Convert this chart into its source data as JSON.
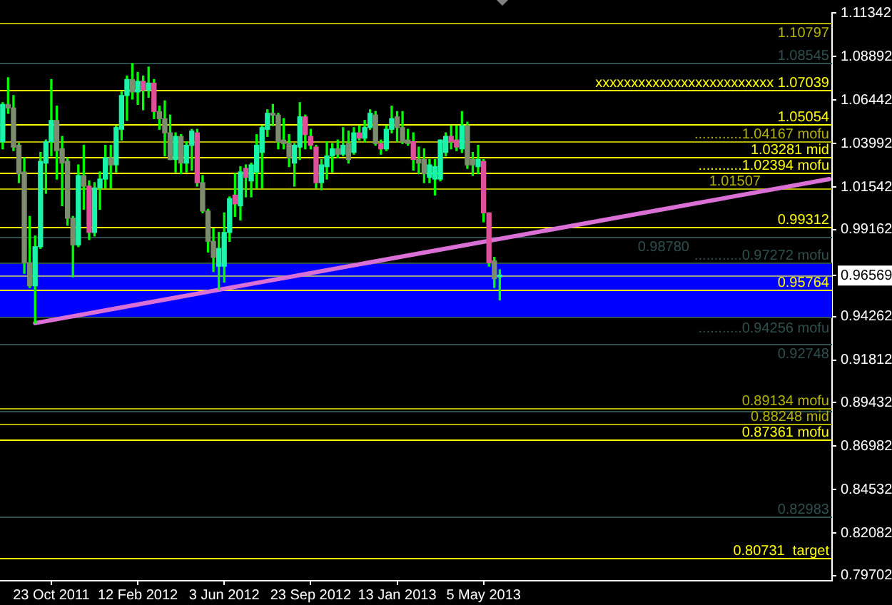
{
  "chart_data": {
    "type": "candlestick",
    "categories": [
      null,
      null,
      null,
      null,
      null,
      null,
      null,
      null,
      null,
      "23 Oct 2011",
      null,
      null,
      null,
      null,
      null,
      null,
      null,
      null,
      null,
      null,
      null,
      null,
      null,
      null,
      null,
      "12 Feb 2012",
      null,
      null,
      null,
      null,
      null,
      null,
      null,
      null,
      null,
      null,
      null,
      null,
      null,
      null,
      null,
      "3 Jun 2012",
      null,
      null,
      null,
      null,
      null,
      null,
      null,
      null,
      null,
      null,
      null,
      null,
      null,
      null,
      null,
      "23 Sep 2012",
      null,
      null,
      null,
      null,
      null,
      null,
      null,
      null,
      null,
      null,
      null,
      null,
      null,
      null,
      null,
      "13 Jan 2013",
      null,
      null,
      null,
      null,
      null,
      null,
      null,
      null,
      null,
      null,
      null,
      null,
      null,
      null,
      null,
      "5 May 2013",
      null,
      null,
      null,
      null,
      null,
      null,
      null,
      null,
      null,
      null,
      null,
      null,
      null,
      null,
      null,
      null,
      null,
      null,
      null,
      null,
      null,
      null,
      null,
      null,
      null,
      null,
      null,
      null,
      null,
      null,
      null,
      null,
      null,
      null,
      null,
      null,
      null,
      null,
      null,
      null,
      null,
      null,
      null,
      null,
      null,
      null,
      null,
      null,
      null,
      null,
      null,
      null,
      null,
      null,
      null,
      null,
      null,
      null,
      null,
      null,
      null,
      null,
      null,
      null
    ],
    "ohlc": [
      [
        1.041,
        1.063,
        1.037,
        1.062
      ],
      [
        1.062,
        1.077,
        1.057,
        1.06
      ],
      [
        1.06,
        1.067,
        1.036,
        1.038
      ],
      [
        1.039,
        1.04,
        1.018,
        1.023
      ],
      [
        1.024,
        1.032,
        0.967,
        0.973
      ],
      [
        0.973,
        0.999,
        0.959,
        0.96
      ],
      [
        0.96,
        0.988,
        0.939,
        0.982
      ],
      [
        0.982,
        1.035,
        0.981,
        1.03
      ],
      [
        1.029,
        1.042,
        1.012,
        1.041
      ],
      [
        1.041,
        1.076,
        1.033,
        1.053
      ],
      [
        1.053,
        1.061,
        1.02,
        1.036
      ],
      [
        1.037,
        1.044,
        1.005,
        1.029
      ],
      [
        1.03,
        1.032,
        0.994,
        0.998
      ],
      [
        0.998,
        0.999,
        0.965,
        0.983
      ],
      [
        0.983,
        1.028,
        0.982,
        1.022
      ],
      [
        1.022,
        1.039,
        1.003,
        1.016
      ],
      [
        1.016,
        1.019,
        0.986,
        0.99
      ],
      [
        0.99,
        1.018,
        0.988,
        1.015
      ],
      [
        1.015,
        1.024,
        1.003,
        1.02
      ],
      [
        1.02,
        1.039,
        1.015,
        1.032
      ],
      [
        1.032,
        1.039,
        1.015,
        1.028
      ],
      [
        1.028,
        1.05,
        1.024,
        1.049
      ],
      [
        1.048,
        1.069,
        1.042,
        1.067
      ],
      [
        1.067,
        1.078,
        1.053,
        1.076
      ],
      [
        1.076,
        1.085,
        1.065,
        1.069
      ],
      [
        1.069,
        1.08,
        1.062,
        1.075
      ],
      [
        1.075,
        1.078,
        1.059,
        1.07
      ],
      [
        1.07,
        1.083,
        1.066,
        1.074
      ],
      [
        1.074,
        1.076,
        1.054,
        1.058
      ],
      [
        1.058,
        1.061,
        1.048,
        1.054
      ],
      [
        1.054,
        1.064,
        1.033,
        1.046
      ],
      [
        1.046,
        1.056,
        1.031,
        1.031
      ],
      [
        1.031,
        1.046,
        1.024,
        1.044
      ],
      [
        1.044,
        1.045,
        1.023,
        1.029
      ],
      [
        1.029,
        1.041,
        1.024,
        1.039
      ],
      [
        1.039,
        1.048,
        1.025,
        1.047
      ],
      [
        1.046,
        1.048,
        1.016,
        1.018
      ],
      [
        1.018,
        1.022,
        1.001,
        1.002
      ],
      [
        1.002,
        1.003,
        0.979,
        0.985
      ],
      [
        0.985,
        0.992,
        0.968,
        0.976
      ],
      [
        0.971,
        0.99,
        0.958,
        0.981
      ],
      [
        0.971,
        1.001,
        0.962,
        0.99
      ],
      [
        0.99,
        1.01,
        0.985,
        1.009
      ],
      [
        1.011,
        1.023,
        0.999,
        1.006
      ],
      [
        1.005,
        1.027,
        0.997,
        1.024
      ],
      [
        1.026,
        1.028,
        1.01,
        1.021
      ],
      [
        1.019,
        1.029,
        1.01,
        1.028
      ],
      [
        1.024,
        1.045,
        1.015,
        1.039
      ],
      [
        1.035,
        1.05,
        1.015,
        1.049
      ],
      [
        1.048,
        1.059,
        1.044,
        1.057
      ],
      [
        1.057,
        1.062,
        1.05,
        1.056
      ],
      [
        1.056,
        1.057,
        1.037,
        1.041
      ],
      [
        1.042,
        1.054,
        1.037,
        1.04
      ],
      [
        1.04,
        1.045,
        1.027,
        1.032
      ],
      [
        1.029,
        1.04,
        1.016,
        1.039
      ],
      [
        1.038,
        1.063,
        1.031,
        1.055
      ],
      [
        1.055,
        1.056,
        1.037,
        1.045
      ],
      [
        1.044,
        1.048,
        1.037,
        1.039
      ],
      [
        1.038,
        1.039,
        1.015,
        1.018
      ],
      [
        1.018,
        1.031,
        1.014,
        1.028
      ],
      [
        1.027,
        1.041,
        1.02,
        1.033
      ],
      [
        1.033,
        1.04,
        1.024,
        1.037
      ],
      [
        1.037,
        1.042,
        1.032,
        1.034
      ],
      [
        1.034,
        1.049,
        1.033,
        1.039
      ],
      [
        1.04,
        1.047,
        1.029,
        1.031
      ],
      [
        1.035,
        1.049,
        1.034,
        1.046
      ],
      [
        1.046,
        1.05,
        1.042,
        1.043
      ],
      [
        1.043,
        1.053,
        1.041,
        1.049
      ],
      [
        1.049,
        1.059,
        1.048,
        1.057
      ],
      [
        1.056,
        1.058,
        1.039,
        1.04
      ],
      [
        1.04,
        1.042,
        1.034,
        1.037
      ],
      [
        1.037,
        1.05,
        1.036,
        1.048
      ],
      [
        1.048,
        1.061,
        1.046,
        1.054
      ],
      [
        1.055,
        1.058,
        1.041,
        1.049
      ],
      [
        1.049,
        1.058,
        1.04,
        1.041
      ],
      [
        1.042,
        1.048,
        1.039,
        1.04
      ],
      [
        1.041,
        1.046,
        1.025,
        1.031
      ],
      [
        1.031,
        1.038,
        1.023,
        1.029
      ],
      [
        1.031,
        1.037,
        1.018,
        1.023
      ],
      [
        1.021,
        1.031,
        1.018,
        1.028
      ],
      [
        1.02,
        1.031,
        1.011,
        1.027
      ],
      [
        1.02,
        1.042,
        1.019,
        1.042
      ],
      [
        1.035,
        1.046,
        1.033,
        1.044
      ],
      [
        1.044,
        1.05,
        1.037,
        1.041
      ],
      [
        1.042,
        1.05,
        1.036,
        1.038
      ],
      [
        1.037,
        1.058,
        1.035,
        1.05
      ],
      [
        1.05,
        1.052,
        1.026,
        1.028
      ],
      [
        1.031,
        1.035,
        1.022,
        1.028
      ],
      [
        1.027,
        1.039,
        1.023,
        1.031
      ],
      [
        1.03,
        1.031,
        0.996,
        1.001
      ],
      [
        1.001,
        1.001,
        0.971,
        0.973
      ],
      [
        0.974,
        0.976,
        0.959,
        0.964
      ],
      [
        0.965,
        0.969,
        0.952,
        0.966
      ],
      null,
      null,
      null,
      null,
      null,
      null,
      null,
      null,
      null,
      null,
      null,
      null,
      null,
      null,
      null,
      null,
      null,
      null,
      null,
      null,
      null,
      null,
      null,
      null,
      null,
      null,
      null,
      null,
      null,
      null,
      null,
      null,
      null,
      null,
      null,
      null,
      null,
      null,
      null,
      null,
      null,
      null,
      null,
      null,
      null,
      null,
      null,
      null,
      null,
      null,
      null,
      null,
      null,
      null,
      null,
      null,
      null,
      null,
      null,
      null,
      null
    ],
    "color": "#00ff00",
    "colors": [
      "#19f5a8",
      "#7d8c6e",
      "#7d8c6e",
      "#7d8c6e",
      "#7d8c6e",
      "#7d8c6e",
      "#19f5a8",
      "#19f5a8",
      "#19f5a8",
      "#19f5a8",
      "#7d8c6e",
      "#7d8c6e",
      "#7d8c6e",
      "#7d8c6e",
      "#19f5a8",
      "#7d8c6e",
      "#e0509a",
      "#19f5a8",
      "#19f5a8",
      "#19f5a8",
      "#7d8c6e",
      "#19f5a8",
      "#19f5a8",
      "#19f5a8",
      "#7d8c6e",
      "#19f5a8",
      "#e0509a",
      "#19f5a8",
      "#e0509a",
      "#7d8c6e",
      "#7d8c6e",
      "#7d8c6e",
      "#19f5a8",
      "#7d8c6e",
      "#19f5a8",
      "#19f5a8",
      "#e0509a",
      "#7d8c6e",
      "#7d8c6e",
      "#7d8c6e",
      "#19f5a8",
      "#19f5a8",
      "#19f5a8",
      "#e0509a",
      "#19f5a8",
      "#e0509a",
      "#19f5a8",
      "#19f5a8",
      "#19f5a8",
      "#19f5a8",
      "#7d8c6e",
      "#7d8c6e",
      "#7d8c6e",
      "#7d8c6e",
      "#19f5a8",
      "#19f5a8",
      "#e0509a",
      "#e0509a",
      "#e0509a",
      "#19f5a8",
      "#19f5a8",
      "#19f5a8",
      "#7d8c6e",
      "#19f5a8",
      "#7d8c6e",
      "#19f5a8",
      "#e0509a",
      "#19f5a8",
      "#19f5a8",
      "#7d8c6e",
      "#e0509a",
      "#19f5a8",
      "#19f5a8",
      "#7d8c6e",
      "#7d8c6e",
      "#7d8c6e",
      "#e0509a",
      "#7d8c6e",
      "#7d8c6e",
      "#19f5a8",
      "#19f5a8",
      "#19f5a8",
      "#19f5a8",
      "#e0509a",
      "#e0509a",
      "#19f5a8",
      "#7d8c6e",
      "#7d8c6e",
      "#19f5a8",
      "#e0509a",
      "#e0509a",
      "#7d8c6e",
      "#19f5a8",
      null,
      null,
      null,
      null,
      null,
      null,
      null,
      null,
      null,
      null,
      null,
      null,
      null,
      null,
      null,
      null,
      null,
      null,
      null,
      null,
      null,
      null,
      null,
      null,
      null,
      null,
      null,
      null,
      null,
      null,
      null,
      null,
      null,
      null,
      null,
      null,
      null,
      null,
      null,
      null,
      null,
      null,
      null,
      null,
      null,
      null,
      null,
      null,
      null,
      null,
      null,
      null,
      null,
      null,
      null,
      null,
      null,
      null,
      null,
      null,
      null
    ],
    "series": [
      {
        "type": "line",
        "color": "#da70d6",
        "values": [
          null,
          null,
          null,
          null,
          null,
          null,
          0.939,
          null,
          null,
          null,
          null,
          null,
          null,
          null,
          null,
          null,
          null,
          null,
          null,
          null,
          null,
          null,
          null,
          null,
          null,
          null,
          null,
          null,
          null,
          null,
          null,
          null,
          null,
          null,
          null,
          null,
          null,
          null,
          null,
          null,
          null,
          null,
          null,
          null,
          null,
          null,
          null,
          null,
          null,
          null,
          null,
          null,
          null,
          null,
          null,
          null,
          null,
          null,
          null,
          null,
          null,
          null,
          null,
          null,
          null,
          null,
          null,
          null,
          null,
          null,
          null,
          null,
          null,
          null,
          null,
          null,
          null,
          null,
          null,
          null,
          null,
          null,
          null,
          null,
          null,
          null,
          null,
          null,
          null,
          null,
          null,
          null,
          null,
          null,
          null,
          null,
          null,
          null,
          null,
          null,
          null,
          null,
          null,
          null,
          null,
          null,
          null,
          null,
          null,
          null,
          null,
          null,
          null,
          null,
          null,
          null,
          null,
          null,
          null,
          null,
          null,
          null,
          null,
          null,
          null,
          null,
          null,
          null,
          null,
          null,
          null,
          null,
          null,
          null,
          null,
          null,
          null,
          null,
          null,
          null,
          null,
          null,
          null,
          null,
          null,
          null,
          null,
          null,
          null,
          null,
          null,
          null,
          null,
          1.02
        ]
      }
    ],
    "ylim": [
      0.7941,
      1.1135
    ],
    "yticks": [
      1.11342,
      1.08892,
      1.06442,
      1.03992,
      1.01542,
      0.99162,
      0.96569,
      0.94262,
      0.91812,
      0.89432,
      0.86982,
      0.84532,
      0.82082,
      0.79702
    ],
    "bands": [
      {
        "axis": "y",
        "from": 0.94256,
        "to": 0.97272,
        "color": "#0000ff"
      }
    ],
    "ref_lines": [
      {
        "axis": "y",
        "value": 1.10797,
        "label": "1.10797",
        "color": "#b4b400"
      },
      {
        "axis": "y",
        "value": 1.08545,
        "label": "1.08545",
        "color": "#2f4f4f"
      },
      {
        "axis": "y",
        "value": 1.07039,
        "label": "xxxxxxxxxxxxxxxxxxxxxxxxx 1.07039",
        "color": "#ffff00"
      },
      {
        "axis": "y",
        "value": 1.05054,
        "label": "1.05054",
        "color": "#ffff00"
      },
      {
        "axis": "y",
        "value": 1.04167,
        "label": "............1.04167 mofu",
        "color": "#b4b400"
      },
      {
        "axis": "y",
        "value": 1.03281,
        "label": "1.03281 mid",
        "color": "#ffff00"
      },
      {
        "axis": "y",
        "value": 1.02394,
        "label": "...........1.02394 mofu",
        "color": "#ffff00"
      },
      {
        "axis": "y",
        "value": 1.01507,
        "label": "1.01507",
        "color": "#b4b400"
      },
      {
        "axis": "y",
        "value": 0.99312,
        "label": "0.99312",
        "color": "#ffff00"
      },
      {
        "axis": "y",
        "value": 0.9878,
        "label": "0.98780",
        "color": "#2f4f4f"
      },
      {
        "axis": "y",
        "value": 0.97272,
        "label": "............0.97272 mofu",
        "color": "#2f4f4f"
      },
      {
        "axis": "y",
        "value": 0.96569,
        "color": "#a0a090"
      },
      {
        "axis": "y",
        "value": 0.95764,
        "label": "0.95764",
        "color": "#ffff00"
      },
      {
        "axis": "y",
        "value": 0.94256,
        "label": "...........0.94256 mofu",
        "color": "#2f4f4f"
      },
      {
        "axis": "y",
        "value": 0.92748,
        "label": "0.92748",
        "color": "#2f4f4f"
      },
      {
        "axis": "y",
        "value": 0.89134,
        "label": "0.89134 mofu",
        "color": "#b4b400"
      },
      {
        "axis": "y",
        "value": 0.8895,
        "color": "#2f4f4f"
      },
      {
        "axis": "y",
        "value": 0.88248,
        "label": "0.88248 mid",
        "color": "#b4b400"
      },
      {
        "axis": "y",
        "value": 0.87361,
        "label": "0.87361 mofu",
        "color": "#ffff00"
      },
      {
        "axis": "y",
        "value": 0.82983,
        "label": "0.82983",
        "color": "#2f4f4f"
      },
      {
        "axis": "y",
        "value": 0.80731,
        "label": "0.80731  target",
        "color": "#ffff00"
      }
    ]
  }
}
